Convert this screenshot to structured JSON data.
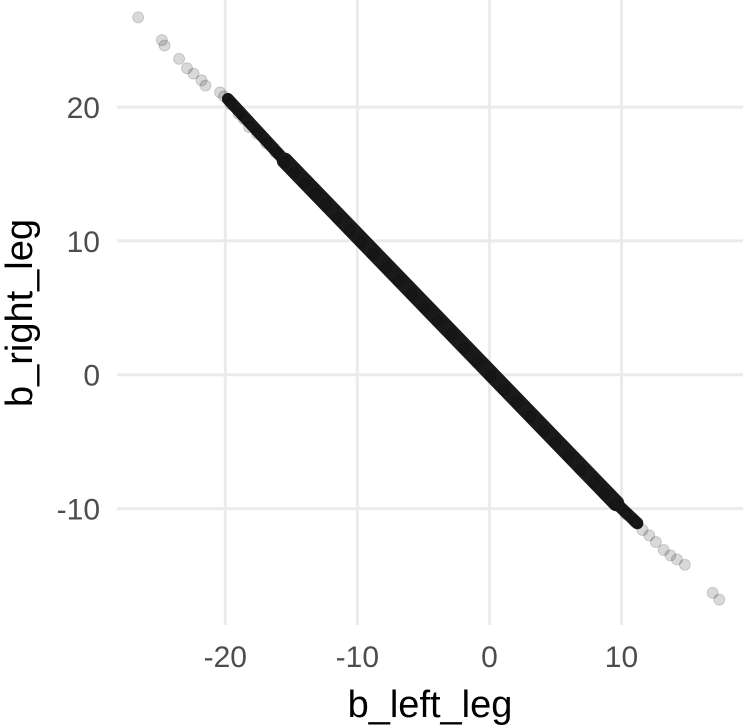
{
  "chart_data": {
    "type": "scatter",
    "title": "",
    "xlabel": "b_left_leg",
    "ylabel": "b_right_leg",
    "xlim": [
      -28.2,
      19.2
    ],
    "ylim": [
      -18.7,
      28.0
    ],
    "x_ticks": [
      -20,
      -10,
      0,
      10
    ],
    "y_ticks": [
      -10,
      0,
      10,
      20
    ],
    "x_tick_labels": [
      "-20",
      "-10",
      "0",
      "10"
    ],
    "y_tick_labels": [
      "-10",
      "0",
      "10",
      "20"
    ],
    "grid": true,
    "point_color": "#000000",
    "point_alpha": 0.15,
    "relationship": "y ≈ -x (strong negative linear)",
    "points": [
      [
        -26.6,
        26.7
      ],
      [
        -24.8,
        25.0
      ],
      [
        -24.6,
        24.6
      ],
      [
        -23.5,
        23.6
      ],
      [
        -22.9,
        22.9
      ],
      [
        -22.4,
        22.5
      ],
      [
        -21.8,
        22.0
      ],
      [
        -21.5,
        21.6
      ],
      [
        -20.4,
        21.1
      ],
      [
        -20.1,
        20.8
      ],
      [
        -19.6,
        20.2
      ],
      [
        -19.0,
        19.5
      ],
      [
        -18.6,
        19.1
      ],
      [
        -18.2,
        18.5
      ],
      [
        -17.6,
        18.0
      ],
      [
        -16.9,
        17.3
      ],
      [
        -16.2,
        16.6
      ],
      [
        -15.5,
        15.9
      ],
      [
        -14.8,
        15.1
      ],
      [
        -14.0,
        14.3
      ],
      [
        -13.2,
        13.5
      ],
      [
        -12.4,
        12.7
      ],
      [
        -11.5,
        11.7
      ],
      [
        -10.6,
        10.8
      ],
      [
        -9.7,
        9.9
      ],
      [
        -8.8,
        9.0
      ],
      [
        -7.8,
        8.0
      ],
      [
        -6.9,
        7.0
      ],
      [
        -5.9,
        6.0
      ],
      [
        -4.9,
        5.0
      ],
      [
        -3.9,
        4.0
      ],
      [
        -2.9,
        3.0
      ],
      [
        -1.9,
        2.0
      ],
      [
        -0.9,
        1.0
      ],
      [
        0.1,
        -0.1
      ],
      [
        1.1,
        -1.1
      ],
      [
        2.1,
        -2.1
      ],
      [
        3.1,
        -3.1
      ],
      [
        4.1,
        -4.2
      ],
      [
        5.0,
        -5.1
      ],
      [
        6.0,
        -6.1
      ],
      [
        6.9,
        -7.1
      ],
      [
        7.9,
        -8.0
      ],
      [
        8.7,
        -8.9
      ],
      [
        9.5,
        -9.7
      ],
      [
        10.3,
        -10.4
      ],
      [
        11.0,
        -11.0
      ],
      [
        11.6,
        -11.6
      ],
      [
        12.1,
        -12.0
      ],
      [
        12.6,
        -12.5
      ],
      [
        13.2,
        -13.1
      ],
      [
        13.7,
        -13.5
      ],
      [
        14.2,
        -13.8
      ],
      [
        14.8,
        -14.2
      ],
      [
        16.9,
        -16.3
      ],
      [
        17.4,
        -16.8
      ]
    ]
  }
}
